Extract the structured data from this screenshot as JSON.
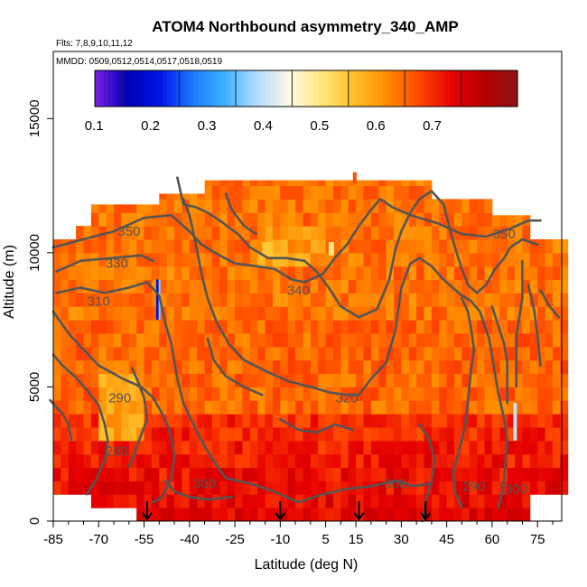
{
  "chart_data": {
    "type": "heatmap",
    "title": "ATOM4 Northbound asymmetry_340_AMP",
    "flights_note": "Flts: 7,8,9,10,11,12",
    "dates_note": "MMDD: 0509,0512,0514,0517,0518,0519",
    "xlabel": "Latitude (deg N)",
    "ylabel": "Altitude (m)",
    "xlim": [
      -85,
      83
    ],
    "ylim": [
      0,
      17500
    ],
    "x_ticks": [
      -85,
      -70,
      -55,
      -40,
      -25,
      -10,
      5,
      15,
      30,
      45,
      60,
      75
    ],
    "y_ticks": [
      0,
      5000,
      10000,
      15000
    ],
    "colorbar": {
      "range": [
        0.05,
        0.8
      ],
      "ticks": [
        0.1,
        0.2,
        0.3,
        0.4,
        0.5,
        0.6,
        0.7
      ],
      "colors": [
        "#7a1fe6",
        "#0000b4",
        "#0014e6",
        "#1e78ff",
        "#3cb4ff",
        "#b4dcff",
        "#fffae6",
        "#ffe678",
        "#ffbe28",
        "#ff8c00",
        "#ff4600",
        "#e60000",
        "#b40000",
        "#8c1414"
      ]
    },
    "series_description": {
      "heatmap": "amplitude of 340 asymmetry binned by latitude and altitude",
      "contours": "potential temperature (K)"
    },
    "contour_levels": [
      "280",
      "290",
      "300",
      "310",
      "320",
      "330",
      "340",
      "350"
    ],
    "contour_labels": [
      {
        "text": "350",
        "lat": -60,
        "alt": 10800
      },
      {
        "text": "330",
        "lat": -64,
        "alt": 9600
      },
      {
        "text": "310",
        "lat": -70,
        "alt": 8200
      },
      {
        "text": "290",
        "lat": -63,
        "alt": 4600
      },
      {
        "text": "280",
        "lat": -64,
        "alt": 2600
      },
      {
        "text": "300",
        "lat": -35,
        "alt": 1400
      },
      {
        "text": "340",
        "lat": -4,
        "alt": 8600
      },
      {
        "text": "320",
        "lat": 12,
        "alt": 4600
      },
      {
        "text": "300",
        "lat": 28,
        "alt": 1400
      },
      {
        "text": "290",
        "lat": 54,
        "alt": 1300
      },
      {
        "text": "350",
        "lat": 64,
        "alt": 10700
      },
      {
        "text": "300",
        "lat": 68,
        "alt": 1200
      }
    ],
    "arrows_lat": [
      -54,
      -10,
      16,
      38
    ],
    "grid": false
  }
}
